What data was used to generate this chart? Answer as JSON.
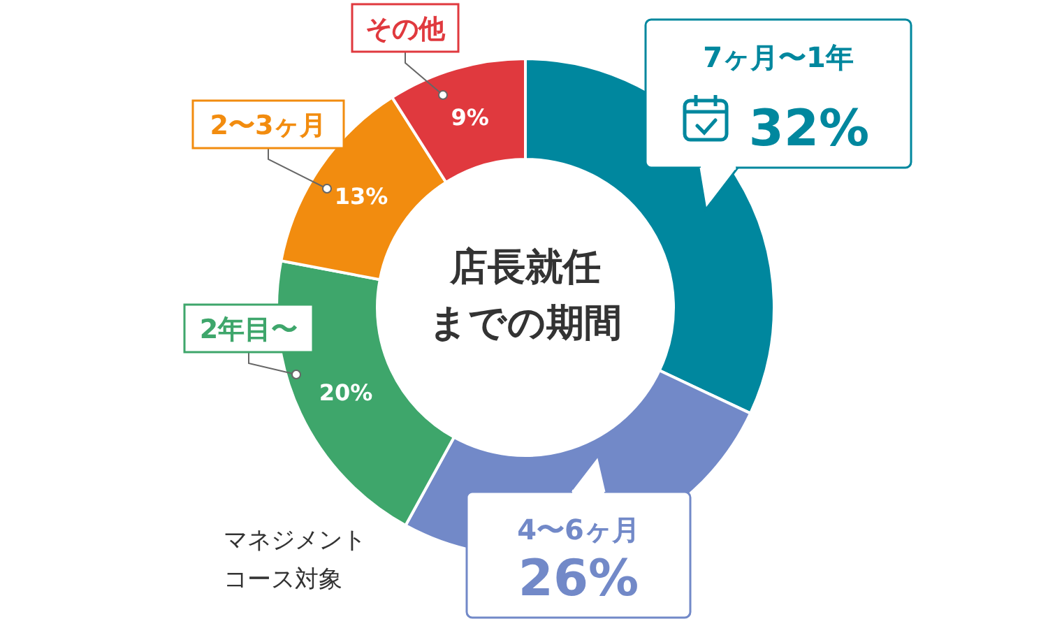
{
  "chart_data": {
    "type": "donut",
    "title": "店長就任までの期間",
    "categories": [
      "7ヶ月〜1年",
      "4〜6ヶ月",
      "2年目〜",
      "2〜3ヶ月",
      "その他"
    ],
    "values": [
      32,
      26,
      20,
      13,
      9
    ],
    "colors": [
      "#00879e",
      "#7289c8",
      "#3ea66b",
      "#f28c0f",
      "#e0393e"
    ],
    "value_labels": [
      "32%",
      "26%",
      "20%",
      "13%",
      "9%"
    ],
    "annotations": [
      "マネジメントコース対象"
    ]
  }
}
